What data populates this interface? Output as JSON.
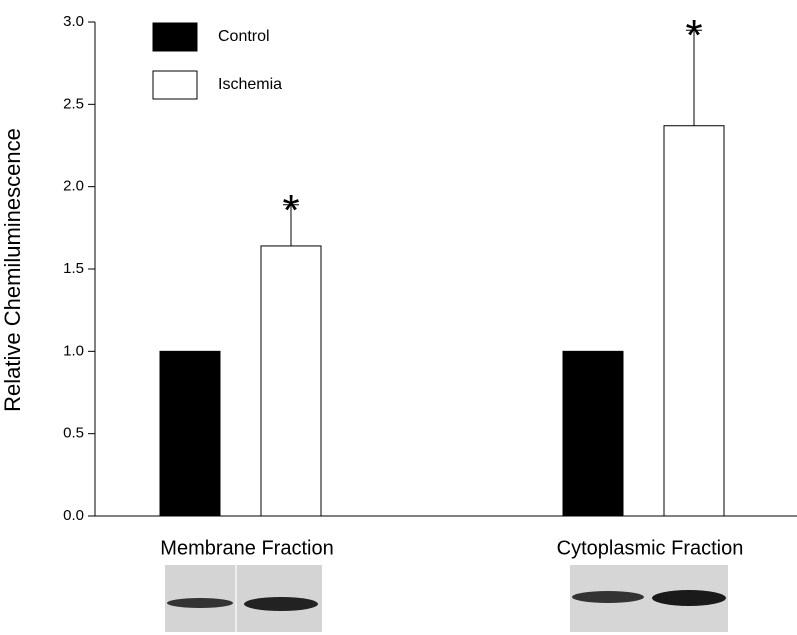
{
  "chart_data": {
    "type": "bar",
    "y_label": "Relative Chemiluminescence",
    "categories": [
      "Membrane Fraction",
      "Cytoplasmic Fraction"
    ],
    "series": [
      {
        "name": "Control",
        "color": "#000000",
        "values": [
          1.0,
          1.0
        ]
      },
      {
        "name": "Ischemia",
        "color": "#ffffff",
        "values": [
          1.64,
          2.37
        ],
        "errors": [
          0.25,
          0.58
        ],
        "significance": [
          "*",
          "*"
        ]
      }
    ],
    "ylim": [
      0,
      3.0
    ],
    "yticks": [
      {
        "value": 0,
        "label": "0.0"
      },
      {
        "value": 0.5,
        "label": "0.5"
      },
      {
        "value": 1,
        "label": "1.0"
      },
      {
        "value": 1.5,
        "label": "1.5"
      },
      {
        "value": 2,
        "label": "2.0"
      },
      {
        "value": 2.5,
        "label": "2.5"
      },
      {
        "value": 3,
        "label": "3.0"
      }
    ],
    "legend": "top-left"
  }
}
